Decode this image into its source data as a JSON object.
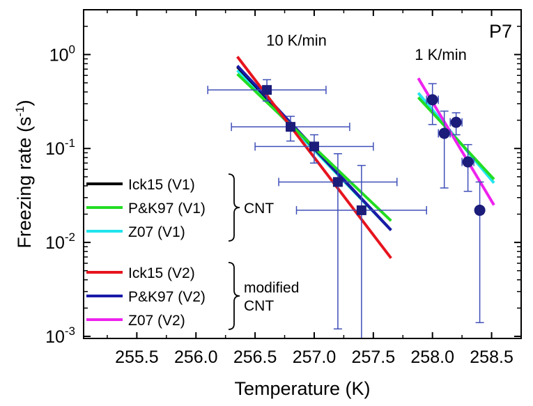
{
  "chart_data": {
    "type": "scatter",
    "title": "",
    "panel_label": "P7",
    "xlabel": "Temperature (K)",
    "ylabel": "Freezing rate (s",
    "ylabel_sup": "-1",
    "ylabel_close": ")",
    "xlim": [
      255.05,
      258.75
    ],
    "ylim": [
      0.00095,
      3
    ],
    "yscale": "log",
    "grid": false,
    "x_ticks": [
      255.5,
      256.0,
      256.5,
      257.0,
      257.5,
      258.0,
      258.5
    ],
    "x_tick_labels": [
      "255.5",
      "256.0",
      "256.5",
      "257.0",
      "257.5",
      "258.0",
      "258.5"
    ],
    "y_ticks": [
      {
        "value": 1,
        "base": "10",
        "exp": "0"
      },
      {
        "value": 0.1,
        "base": "10",
        "exp": "-1"
      },
      {
        "value": 0.01,
        "base": "10",
        "exp": "-2"
      },
      {
        "value": 0.001,
        "base": "10",
        "exp": "-3"
      }
    ],
    "annotations": [
      {
        "text": "10 K/min",
        "x": 256.85,
        "y": 1.25
      },
      {
        "text": "1 K/min",
        "x": 258.07,
        "y": 0.88
      }
    ],
    "legend": {
      "placement": "left",
      "groups": [
        {
          "label_lines": [
            "CNT"
          ],
          "entries": [
            {
              "name": "Ick15 (V1)",
              "color": "#000000"
            },
            {
              "name": "P&K97 (V1)",
              "color": "#22dd22"
            },
            {
              "name": "Z07 (V1)",
              "color": "#22e4ee"
            }
          ]
        },
        {
          "label_lines": [
            "modified",
            "CNT"
          ],
          "entries": [
            {
              "name": "Ick15 (V2)",
              "color": "#e6141e"
            },
            {
              "name": "P&K97 (V2)",
              "color": "#1a1aa8"
            },
            {
              "name": "Z07 (V2)",
              "color": "#ee22ee"
            }
          ]
        }
      ]
    },
    "series": [
      {
        "name": "10 K/min",
        "marker": "square",
        "color": "#1c1c7a",
        "errorbar_color": "#3f4fb8",
        "points": [
          {
            "x": 256.6,
            "y": 0.42,
            "xerr": 0.5,
            "ylow": 0.32,
            "yhigh": 0.54
          },
          {
            "x": 256.8,
            "y": 0.17,
            "xerr": 0.5,
            "ylow": 0.12,
            "yhigh": 0.22
          },
          {
            "x": 257.0,
            "y": 0.105,
            "xerr": 0.5,
            "ylow": 0.07,
            "yhigh": 0.14
          },
          {
            "x": 257.2,
            "y": 0.044,
            "xerr": 0.5,
            "ylow": 0.0012,
            "yhigh": 0.088
          },
          {
            "x": 257.4,
            "y": 0.022,
            "xerr": 0.55,
            "ylow": 0.0009,
            "yhigh": 0.066
          }
        ]
      },
      {
        "name": "1 K/min",
        "marker": "circle",
        "color": "#1c1c7a",
        "errorbar_color": "#3f4fb8",
        "points": [
          {
            "x": 258.0,
            "y": 0.33,
            "xerr": 0.05,
            "ylow": 0.18,
            "yhigh": 0.49
          },
          {
            "x": 258.1,
            "y": 0.145,
            "xerr": 0.05,
            "ylow": 0.038,
            "yhigh": 0.25
          },
          {
            "x": 258.2,
            "y": 0.19,
            "xerr": 0.05,
            "ylow": 0.14,
            "yhigh": 0.24
          },
          {
            "x": 258.3,
            "y": 0.072,
            "xerr": 0.05,
            "ylow": 0.035,
            "yhigh": 0.11
          },
          {
            "x": 258.4,
            "y": 0.022,
            "xerr": 0.03,
            "ylow": 0.0014,
            "yhigh": 0.044
          }
        ]
      }
    ],
    "fit_lines": [
      {
        "name": "Z07 (V1)",
        "color": "#22e4ee",
        "x": [
          256.35,
          257.65
        ],
        "y": [
          0.68,
          0.0135
        ]
      },
      {
        "name": "Ick15 (V1)",
        "color": "#000000",
        "x": [
          256.35,
          257.65
        ],
        "y": [
          0.74,
          0.0135
        ]
      },
      {
        "name": "P&K97 (V2)",
        "color": "#1a1aa8",
        "x": [
          256.35,
          257.65
        ],
        "y": [
          0.76,
          0.0135
        ]
      },
      {
        "name": "P&K97 (V1)",
        "color": "#22dd22",
        "x": [
          256.35,
          257.65
        ],
        "y": [
          0.62,
          0.017
        ]
      },
      {
        "name": "Ick15 (V2)",
        "color": "#e6141e",
        "x": [
          256.35,
          257.65
        ],
        "y": [
          0.95,
          0.0068
        ]
      },
      {
        "name": "Z07 (V1) 1K",
        "color": "#22e4ee",
        "x": [
          257.88,
          258.52
        ],
        "y": [
          0.39,
          0.043
        ]
      },
      {
        "name": "P&K97 (V1) 1K",
        "color": "#22dd22",
        "x": [
          257.88,
          258.52
        ],
        "y": [
          0.35,
          0.047
        ]
      },
      {
        "name": "Z07 (V2) 1K",
        "color": "#ee22ee",
        "x": [
          257.88,
          258.52
        ],
        "y": [
          0.56,
          0.025
        ]
      }
    ]
  }
}
